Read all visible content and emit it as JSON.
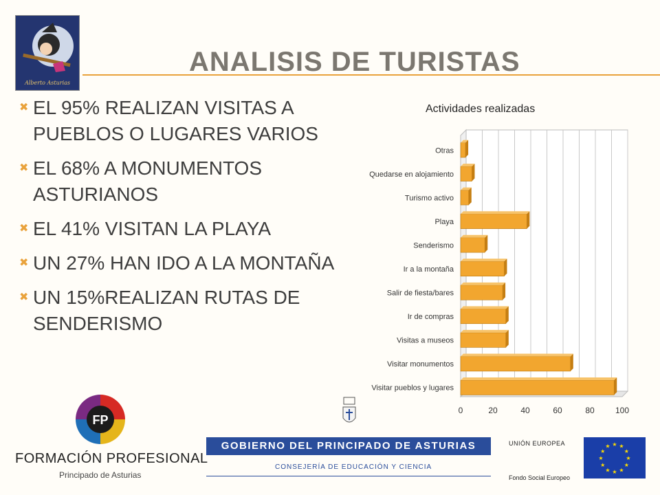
{
  "slide": {
    "title": "ANALISIS DE TURISTAS",
    "bullets": [
      "EL 95% REALIZAN VISITAS A PUEBLOS O LUGARES VARIOS",
      "EL 68% A MONUMENTOS ASTURIANOS",
      "EL 41% VISITAN LA PLAYA",
      "UN 27% HAN IDO A LA MONTAÑA",
      "UN 15%REALIZAN RUTAS DE SENDERISMO"
    ],
    "bullet_icon": "x-bullet-icon"
  },
  "logos": {
    "blog_text": "Alberto Asturias",
    "fp_letters": "FP",
    "fp_title": "FORMACIÓN PROFESIONAL",
    "fp_subtitle": "Principado de Asturias",
    "gov_title": "GOBIERNO DEL PRINCIPADO DE ASTURIAS",
    "gov_subtitle": "CONSEJERÍA DE EDUCACIÓN Y CIENCIA",
    "eu_title": "UNIÓN EUROPEA",
    "eu_subtitle": "Fondo Social Europeo"
  },
  "colors": {
    "accent": "#e9a23b",
    "bar_front": "#f2a62f",
    "bar_top": "#f7c36a",
    "bar_side": "#c57e12",
    "gov_blue": "#2a4d9b",
    "eu_blue": "#1a3ea8",
    "eu_star": "#ffdd00"
  },
  "chart_data": {
    "type": "bar",
    "orientation": "horizontal",
    "title": "Actividades realizadas",
    "categories": [
      "Otras",
      "Quedarse en alojamiento",
      "Turismo activo",
      "Playa",
      "Senderismo",
      "Ir a la montaña",
      "Salir de fiesta/bares",
      "Ir de compras",
      "Visitas a museos",
      "Visitar monumentos",
      "Visitar pueblos y  lugares"
    ],
    "values": [
      3,
      7,
      5,
      41,
      15,
      27,
      26,
      28,
      28,
      68,
      95
    ],
    "xlim": [
      0,
      100
    ],
    "xticks": [
      "0",
      "20",
      "40",
      "60",
      "80",
      "100"
    ],
    "grid": true,
    "style": "3d"
  }
}
